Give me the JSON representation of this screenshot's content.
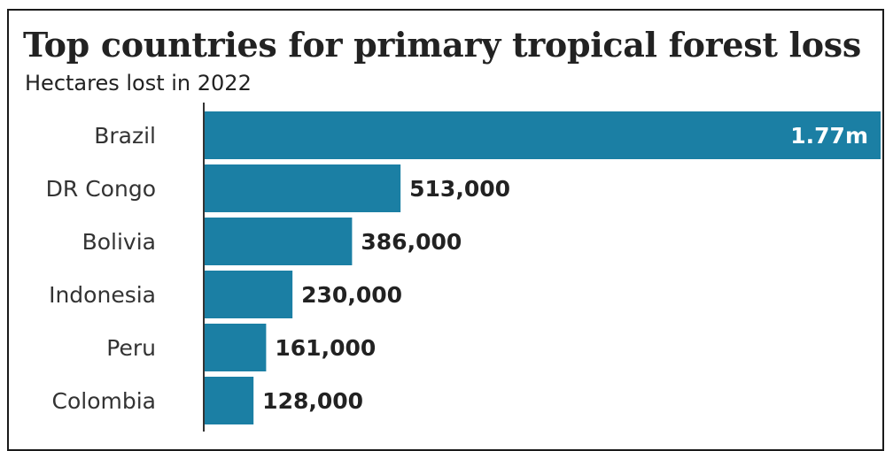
{
  "header": {
    "title": "Top countries for primary tropical forest loss",
    "subtitle": "Hectares lost in 2022"
  },
  "colors": {
    "bar": "#1b7fa4",
    "value_outside": "#222222",
    "value_inside": "#ffffff",
    "axis": "#333333"
  },
  "chart_data": {
    "type": "bar",
    "orientation": "horizontal",
    "title": "Top countries for primary tropical forest loss",
    "subtitle": "Hectares lost in 2022",
    "categories": [
      "Brazil",
      "DR Congo",
      "Bolivia",
      "Indonesia",
      "Peru",
      "Colombia"
    ],
    "values": [
      1770000,
      513000,
      386000,
      230000,
      161000,
      128000
    ],
    "value_labels": [
      "1.77m",
      "513,000",
      "386,000",
      "230,000",
      "161,000",
      "128,000"
    ],
    "unit": "hectares",
    "xlim": [
      0,
      1770000
    ],
    "grid": false,
    "legend": "none"
  }
}
